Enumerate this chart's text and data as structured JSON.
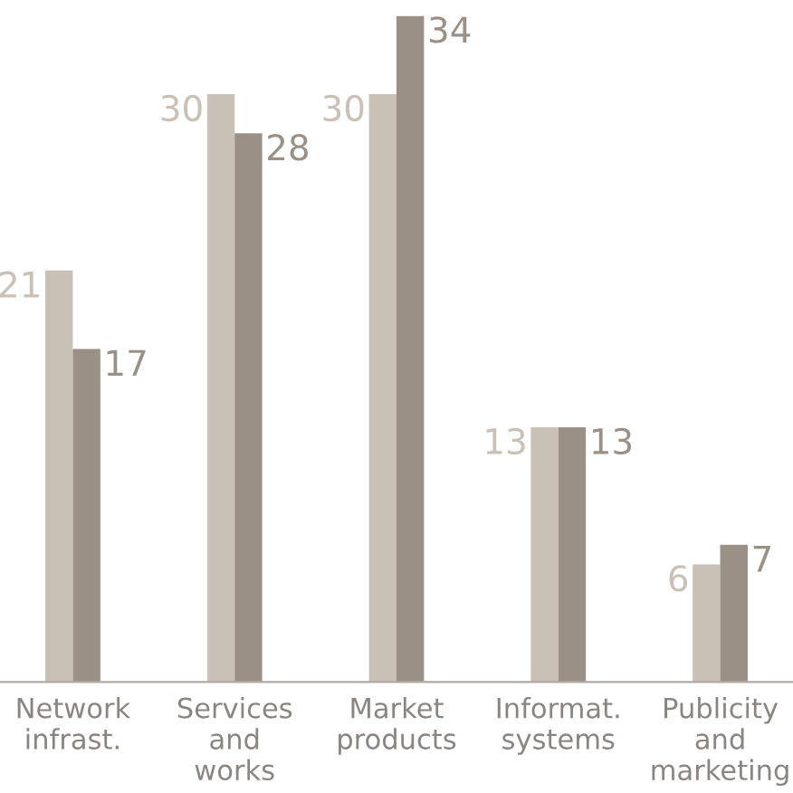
{
  "chart_data": {
    "type": "bar",
    "categories": [
      "Network\ninfrast.",
      "Services\nand\nworks",
      "Market\nproducts",
      "Informat.\nsystems",
      "Publicity\nand\nmarketing"
    ],
    "series": [
      {
        "color": "#c9c0b6",
        "values": [
          21,
          30,
          30,
          13,
          6
        ]
      },
      {
        "color": "#9b9085",
        "values": [
          17,
          28,
          34,
          13,
          7
        ]
      }
    ],
    "data_labels": true,
    "grid": false,
    "legend": false
  }
}
